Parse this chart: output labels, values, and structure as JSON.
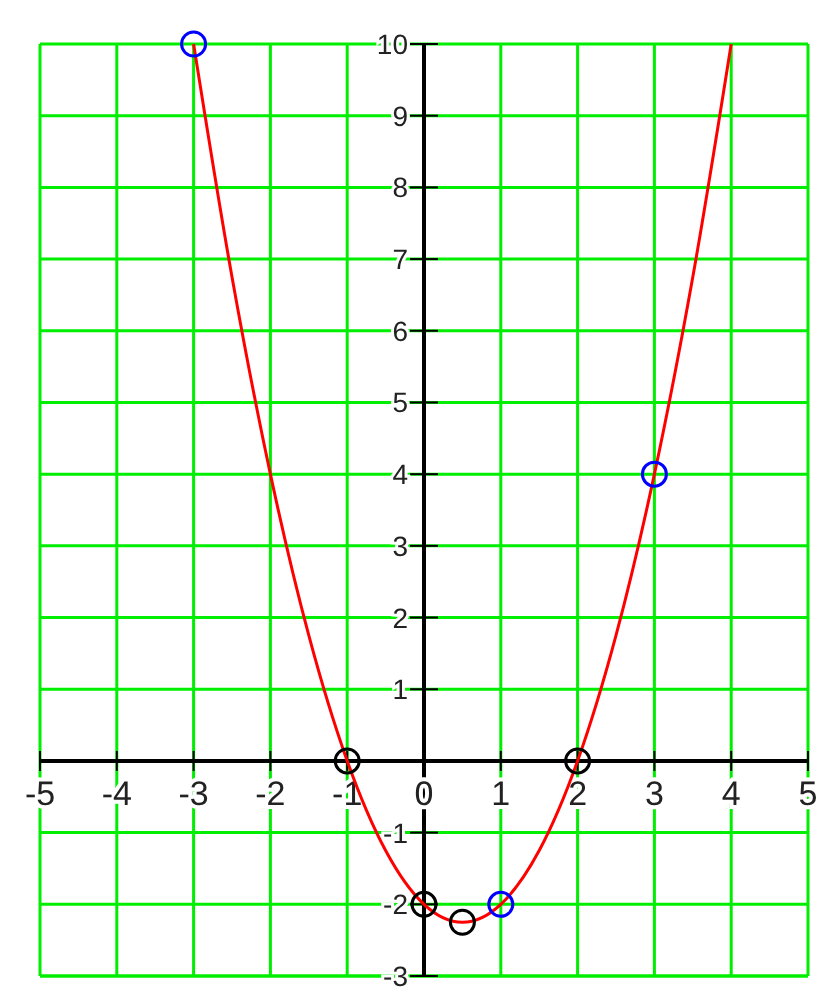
{
  "chart_data": {
    "type": "line",
    "xlim": [
      -5,
      5
    ],
    "ylim": [
      -3,
      10
    ],
    "xticks": [
      -5,
      -4,
      -3,
      -2,
      -1,
      0,
      1,
      2,
      3,
      4,
      5
    ],
    "yticks": [
      -3,
      -2,
      -1,
      1,
      2,
      3,
      4,
      5,
      6,
      7,
      8,
      9,
      10
    ],
    "grid": true,
    "series": [
      {
        "type": "line",
        "color": "#ff0000",
        "marker": "none",
        "x": [
          -3,
          -2.5,
          -2,
          -1.5,
          -1,
          -0.5,
          0,
          0.5,
          1,
          1.5,
          2,
          2.5,
          3,
          3.5,
          4
        ],
        "values": [
          10,
          6.75,
          4,
          1.75,
          0,
          -1.25,
          -2,
          -2.25,
          -2,
          -1.25,
          0,
          1.75,
          4,
          6.75,
          10
        ]
      },
      {
        "type": "scatter",
        "color": "#0000ff",
        "marker": "circle",
        "x": [
          -3,
          1,
          3
        ],
        "values": [
          10,
          -2,
          4
        ]
      },
      {
        "type": "scatter",
        "color": "#000000",
        "marker": "circle",
        "x": [
          -1,
          0,
          0.5,
          2
        ],
        "values": [
          0,
          -2,
          -2.25,
          0
        ]
      }
    ]
  }
}
